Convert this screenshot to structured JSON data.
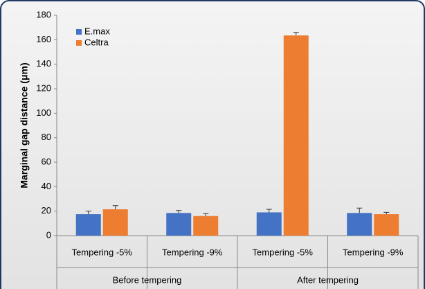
{
  "chart_data": {
    "type": "bar",
    "y_label": "Marginal gap distance (μm)",
    "categories": [
      "Tempering -5%",
      "Tempering -9%",
      "Tempering -5%",
      "Tempering -9%"
    ],
    "groups": [
      "Before tempering",
      "After tempering"
    ],
    "series": [
      {
        "name": "E.max",
        "color": "#4472c4",
        "values": [
          17.5,
          18.5,
          19,
          18.5
        ],
        "errors": [
          2.5,
          2,
          2.5,
          4
        ]
      },
      {
        "name": "Celtra",
        "color": "#ed7d31",
        "values": [
          21.5,
          16,
          163.5,
          17.5
        ],
        "errors": [
          3,
          2,
          2.5,
          1.5
        ]
      }
    ],
    "ylim": [
      0,
      180
    ],
    "yticks": [
      0,
      20,
      40,
      60,
      80,
      100,
      120,
      140,
      160,
      180
    ],
    "grid": false
  }
}
